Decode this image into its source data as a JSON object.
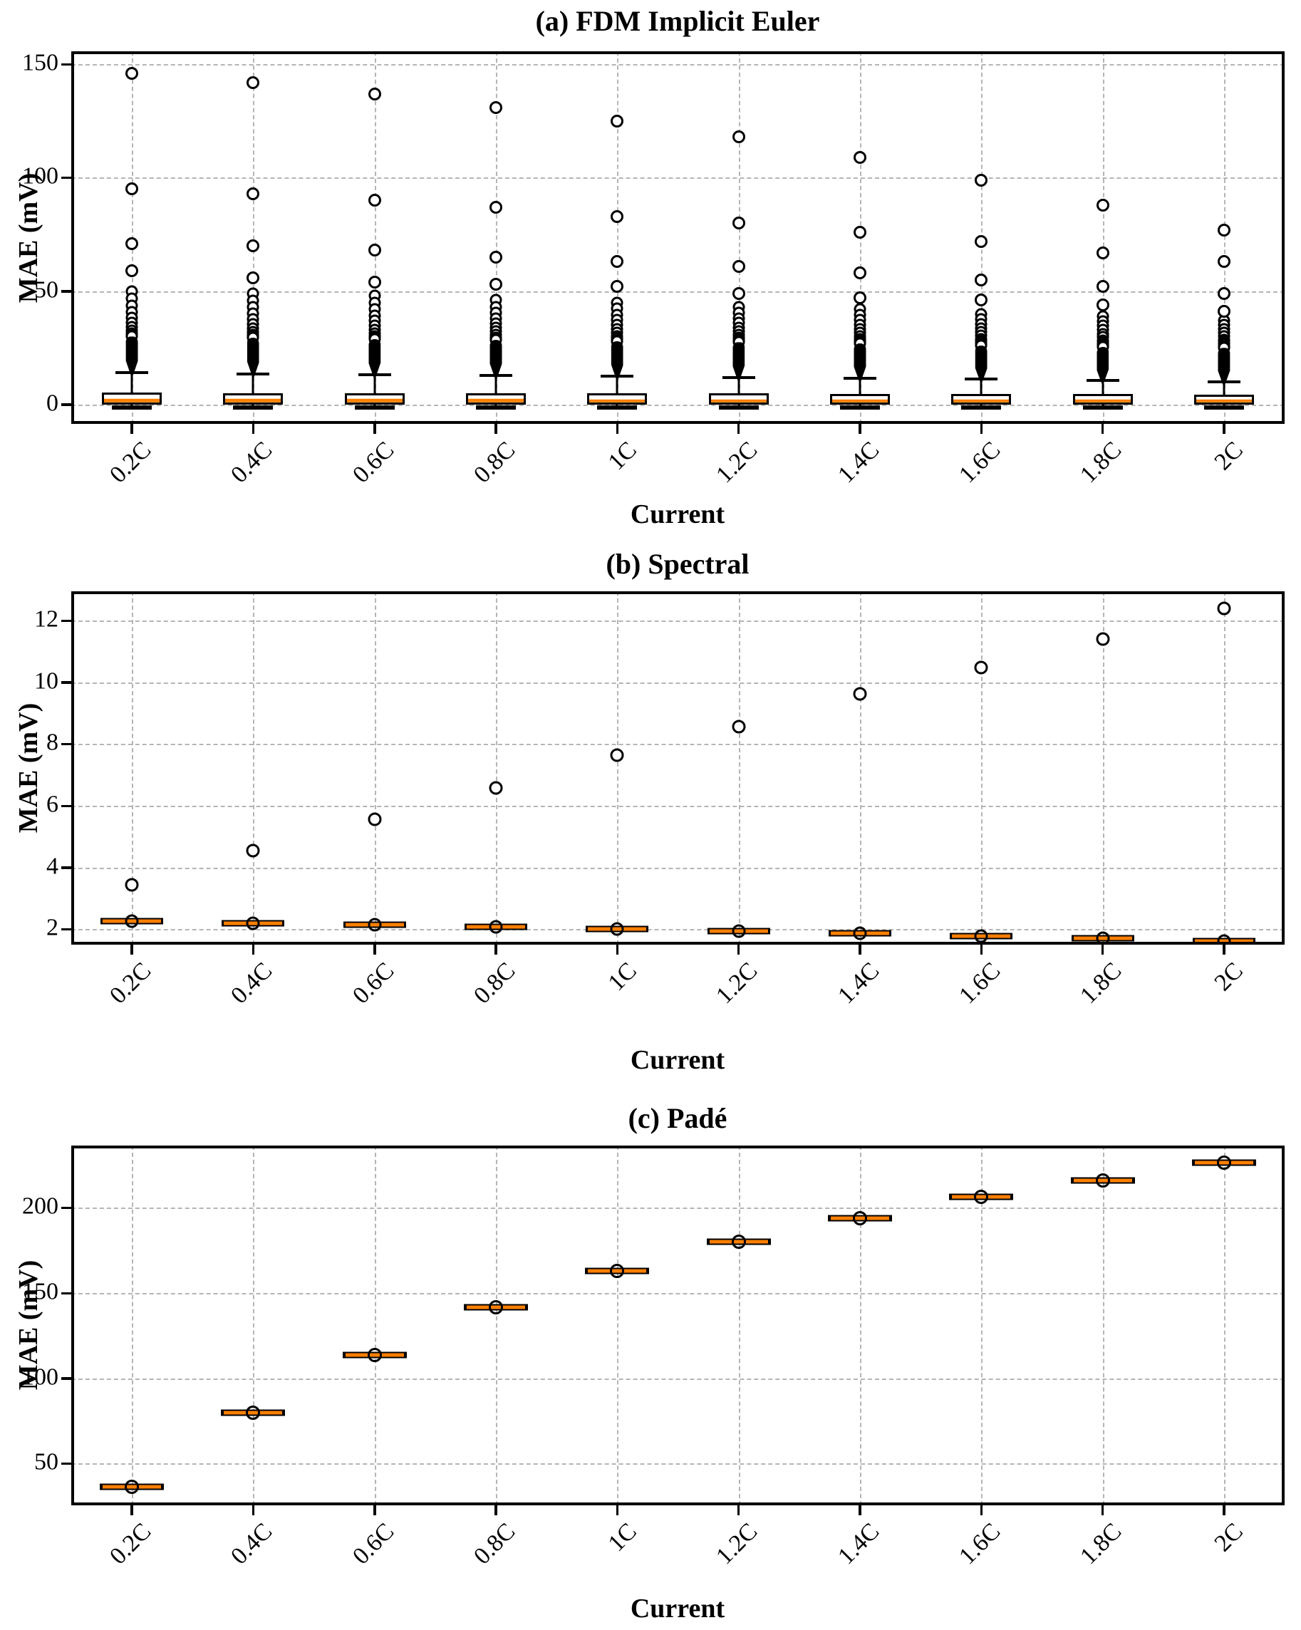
{
  "figure": {
    "background": "#ffffff"
  },
  "colors": {
    "median": "#ff8000",
    "box_edge": "#000000",
    "grid": "#b5b5b5",
    "spine": "#000000"
  },
  "chart_data": [
    {
      "type": "boxplot",
      "title": "(a) FDM Implicit Euler",
      "xlabel": "Current",
      "ylabel": "MAE (mV)",
      "categories": [
        "0.2C",
        "0.4C",
        "0.6C",
        "0.8C",
        "1C",
        "1.2C",
        "1.4C",
        "1.6C",
        "1.8C",
        "2C"
      ],
      "yticks": [
        0,
        50,
        100,
        150
      ],
      "ylim": [
        -8.5,
        155.7
      ],
      "grid": true,
      "legend": "none",
      "series": {
        "medians": [
          1.8,
          1.78,
          1.75,
          1.72,
          1.7,
          1.68,
          1.65,
          1.62,
          1.6,
          1.58
        ],
        "q1": 0.0,
        "q3": [
          5.2,
          5.1,
          5.0,
          4.95,
          4.9,
          4.85,
          4.8,
          4.7,
          4.6,
          4.5
        ],
        "whisker_low": -1.2,
        "whisker_high": [
          14,
          13.6,
          13.2,
          12.8,
          12.4,
          12,
          11.6,
          11.2,
          10.6,
          10
        ],
        "outliers": [
          [
            146,
            95,
            71,
            59
          ],
          [
            142,
            93,
            70,
            56
          ],
          [
            137,
            90,
            68,
            54
          ],
          [
            131,
            87,
            65,
            53
          ],
          [
            125,
            83,
            63,
            52
          ],
          [
            118,
            80,
            61,
            49
          ],
          [
            109,
            76,
            58,
            47
          ],
          [
            99,
            72,
            55,
            46
          ],
          [
            88,
            67,
            52,
            44
          ],
          [
            77,
            63,
            49,
            41
          ]
        ],
        "dense_cluster_top": [
          50,
          49,
          48,
          46,
          45,
          43,
          42,
          40,
          39,
          37
        ],
        "dense_cluster_solid_top": [
          30,
          29.5,
          29,
          28.5,
          28,
          27.5,
          27,
          26,
          25.5,
          25
        ]
      }
    },
    {
      "type": "boxplot",
      "title": "(b) Spectral",
      "xlabel": "Current",
      "ylabel": "MAE (mV)",
      "categories": [
        "0.2C",
        "0.4C",
        "0.6C",
        "0.8C",
        "1C",
        "1.2C",
        "1.4C",
        "1.6C",
        "1.8C",
        "2C"
      ],
      "yticks": [
        2,
        4,
        6,
        8,
        10,
        12
      ],
      "ylim": [
        1.5,
        12.95
      ],
      "grid": true,
      "legend": "none",
      "series": {
        "medians": [
          2.27,
          2.2,
          2.14,
          2.07,
          2.0,
          1.93,
          1.86,
          1.78,
          1.7,
          1.62
        ],
        "outliers_at_median": [
          2.27,
          2.2,
          2.14,
          2.07,
          2.0,
          1.93,
          1.86,
          1.78,
          1.7,
          1.62
        ],
        "outliers_high": [
          3.43,
          4.54,
          5.56,
          6.57,
          7.65,
          8.56,
          9.62,
          10.47,
          11.4,
          12.4
        ]
      }
    },
    {
      "type": "boxplot",
      "title": "(c) Padé",
      "xlabel": "Current",
      "ylabel": "MAE (mV)",
      "categories": [
        "0.2C",
        "0.4C",
        "0.6C",
        "0.8C",
        "1C",
        "1.2C",
        "1.4C",
        "1.6C",
        "1.8C",
        "2C"
      ],
      "yticks": [
        50,
        100,
        150,
        200
      ],
      "ylim": [
        25.5,
        236.5
      ],
      "grid": true,
      "legend": "none",
      "series": {
        "medians": [
          36.5,
          80,
          113.5,
          141.5,
          163,
          180,
          194,
          206.5,
          216,
          226.5
        ],
        "outliers_at_median": [
          36.5,
          80,
          113.5,
          141.5,
          163,
          180,
          194,
          206.5,
          216,
          226.5
        ]
      }
    }
  ]
}
